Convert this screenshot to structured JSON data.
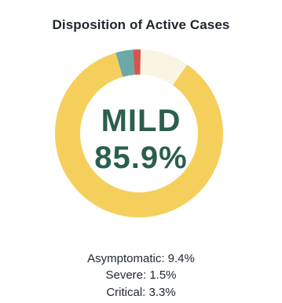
{
  "chart_data": {
    "type": "pie",
    "title": "Disposition of Active Cases",
    "center": {
      "label": "MILD",
      "value": "85.9%"
    },
    "slices": [
      {
        "name": "Mild",
        "value": 85.9,
        "color": "#f5cf5c"
      },
      {
        "name": "Critical",
        "value": 3.3,
        "color": "#6aa9a8"
      },
      {
        "name": "Severe",
        "value": 1.5,
        "color": "#d2574e"
      },
      {
        "name": "Asymptomatic",
        "value": 9.4,
        "color": "#faf4e3"
      }
    ],
    "legend": [
      "Asymptomatic: 9.4%",
      "Severe: 1.5%",
      "Critical: 3.3%"
    ]
  }
}
